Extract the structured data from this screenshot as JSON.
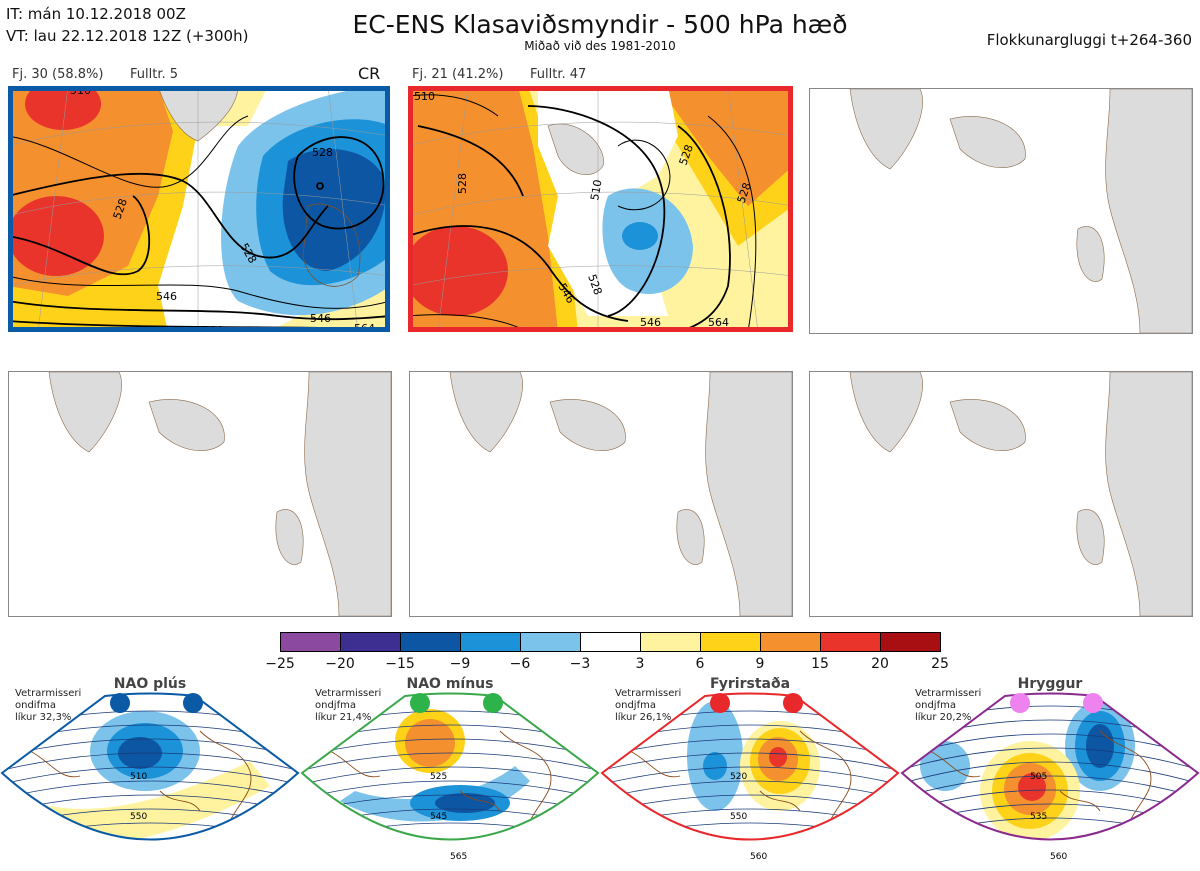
{
  "header": {
    "init_time": "IT: mán 10.12.2018 00Z",
    "valid_time": "VT: lau 22.12.2018 12Z  (+300h)",
    "title": "EC-ENS Klasaviðsmyndir - 500 hPa hæð",
    "subtitle": "Miðað við des 1981-2010",
    "window": "Flokkunargluggi t+264-360"
  },
  "panels": [
    {
      "label": "Fj. 30 (58.8%)",
      "rep": "Fulltr. 5",
      "tag": "CR",
      "frame_color": "#0a5aa6",
      "contours": [
        "510",
        "528",
        "528",
        "528",
        "546",
        "546",
        "564",
        "564"
      ]
    },
    {
      "label": "Fj. 21 (41.2%)",
      "rep": "Fulltr. 47",
      "tag": "",
      "frame_color": "#e8282b",
      "contours": [
        "510",
        "528",
        "528",
        "528",
        "546",
        "528",
        "546",
        "564",
        "510"
      ]
    }
  ],
  "colorbar": {
    "ticks": [
      "−25",
      "−20",
      "−15",
      "−9",
      "−6",
      "−3",
      "3",
      "6",
      "9",
      "15",
      "20",
      "25"
    ],
    "colors": [
      "#8b4aa0",
      "#3d2e91",
      "#0d56a3",
      "#1c92d8",
      "#7cc3ec",
      "#ffffff",
      "#fff3a0",
      "#ffd21a",
      "#f5902f",
      "#e8342b",
      "#a80f13"
    ]
  },
  "regimes": [
    {
      "name": "NAO plús",
      "caption": [
        "Vetrarmisseri",
        "ondifma",
        "líkur 32,3%"
      ],
      "color": "#0a5aa6",
      "dot_color": "#0a5aa6",
      "contour_labels": [
        "510",
        "550"
      ]
    },
    {
      "name": "NAO mínus",
      "caption": [
        "Vetrarmisseri",
        "ondjfma",
        "líkur 21,4%"
      ],
      "color": "#3aa84a",
      "dot_color": "#2db34a",
      "contour_labels": [
        "525",
        "545",
        "565"
      ]
    },
    {
      "name": "Fyrirstaða",
      "caption": [
        "Vetrarmisseri",
        "ondjfma",
        "líkur 26,1%"
      ],
      "color": "#e8282b",
      "dot_color": "#e8282b",
      "contour_labels": [
        "520",
        "550",
        "560"
      ]
    },
    {
      "name": "Hryggur",
      "caption": [
        "Vetrarmisseri",
        "ondjfma",
        "líkur 20,2%"
      ],
      "color": "#8b2a8e",
      "dot_color": "#ee82ee",
      "contour_labels": [
        "505",
        "535",
        "560"
      ]
    }
  ]
}
